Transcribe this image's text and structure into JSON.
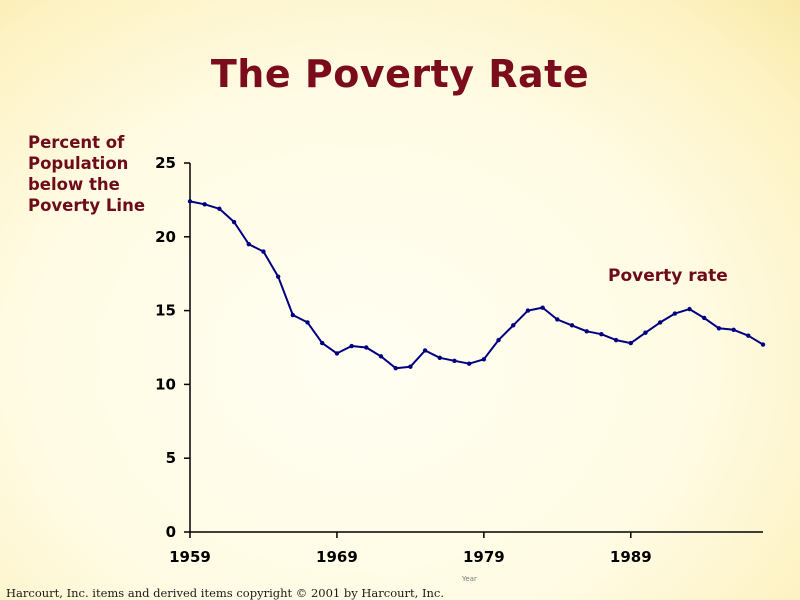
{
  "chart_data": {
    "type": "line",
    "title": "The Poverty Rate",
    "ylabel": "Percent of\nPopulation\nbelow the\nPoverty Line",
    "xlabel": "Year",
    "xlim": [
      1959,
      1998
    ],
    "ylim": [
      0,
      25
    ],
    "yticks": [
      0,
      5,
      10,
      15,
      20,
      25
    ],
    "xticks": [
      1959,
      1969,
      1979,
      1989
    ],
    "grid": false,
    "series": [
      {
        "name": "Poverty rate",
        "color": "#000080",
        "x": [
          1959,
          1960,
          1961,
          1962,
          1963,
          1964,
          1965,
          1966,
          1967,
          1968,
          1969,
          1970,
          1971,
          1972,
          1973,
          1974,
          1975,
          1976,
          1977,
          1978,
          1979,
          1980,
          1981,
          1982,
          1983,
          1984,
          1985,
          1986,
          1987,
          1988,
          1989,
          1990,
          1991,
          1992,
          1993,
          1994,
          1995,
          1996,
          1997,
          1998
        ],
        "y": [
          22.4,
          22.2,
          21.9,
          21.0,
          19.5,
          19.0,
          17.3,
          14.7,
          14.2,
          12.8,
          12.1,
          12.6,
          12.5,
          11.9,
          11.1,
          11.2,
          12.3,
          11.8,
          11.6,
          11.4,
          11.7,
          13.0,
          14.0,
          15.0,
          15.2,
          14.4,
          14.0,
          13.6,
          13.4,
          13.0,
          12.8,
          13.5,
          14.2,
          14.8,
          15.1,
          14.5,
          13.8,
          13.7,
          13.3,
          12.7
        ]
      }
    ]
  },
  "footer": "Harcourt, Inc. items and derived items copyright © 2001  by Harcourt, Inc."
}
